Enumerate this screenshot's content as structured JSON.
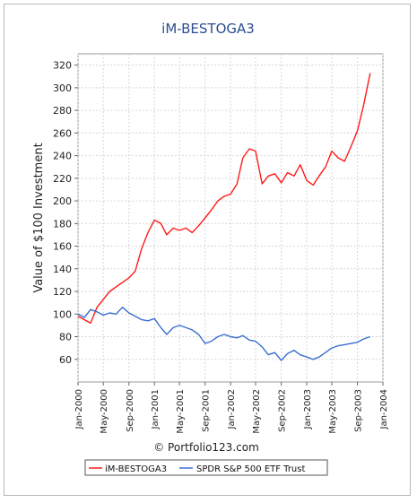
{
  "chart_data": {
    "type": "line",
    "title": "iM-BESTOGA3",
    "xlabel": "",
    "ylabel": "Value of $100 Investment",
    "credit": "© Portfolio123.com",
    "ylim": [
      40,
      330
    ],
    "xlim": [
      "2000-01-01",
      "2004-01-01"
    ],
    "y_ticks": [
      60,
      80,
      100,
      120,
      140,
      160,
      180,
      200,
      220,
      240,
      260,
      280,
      300,
      320
    ],
    "x_ticks": [
      "Jan-2000",
      "May-2000",
      "Sep-2000",
      "Jan-2001",
      "May-2001",
      "Sep-2001",
      "Jan-2002",
      "May-2002",
      "Sep-2002",
      "Jan-2003",
      "May-2003",
      "Sep-2003",
      "Jan-2004"
    ],
    "grid": true,
    "legend_position": "bottom",
    "series": [
      {
        "name": "iM-BESTOGA3",
        "color": "#ff1a1a",
        "x": [
          "2000-01-01",
          "2000-02-01",
          "2000-03-01",
          "2000-04-01",
          "2000-05-01",
          "2000-06-01",
          "2000-07-01",
          "2000-08-01",
          "2000-09-01",
          "2000-10-01",
          "2000-11-01",
          "2000-12-01",
          "2001-01-01",
          "2001-02-01",
          "2001-03-01",
          "2001-04-01",
          "2001-05-01",
          "2001-06-01",
          "2001-07-01",
          "2001-08-01",
          "2001-09-01",
          "2001-10-01",
          "2001-11-01",
          "2001-12-01",
          "2002-01-01",
          "2002-02-01",
          "2002-03-01",
          "2002-04-01",
          "2002-05-01",
          "2002-06-01",
          "2002-07-01",
          "2002-08-01",
          "2002-09-01",
          "2002-10-01",
          "2002-11-01",
          "2002-12-01",
          "2003-01-01",
          "2003-02-01",
          "2003-03-01",
          "2003-04-01",
          "2003-05-01",
          "2003-06-01",
          "2003-07-01",
          "2003-08-01",
          "2003-09-01",
          "2003-10-01",
          "2003-11-01"
        ],
        "y": [
          98,
          95,
          92,
          106,
          113,
          120,
          124,
          128,
          132,
          138,
          158,
          172,
          183,
          180,
          170,
          176,
          174,
          176,
          172,
          178,
          185,
          192,
          200,
          204,
          206,
          215,
          238,
          246,
          244,
          215,
          222,
          224,
          216,
          225,
          222,
          232,
          218,
          214,
          222,
          230,
          244,
          238,
          235,
          248,
          262,
          285,
          313
        ]
      },
      {
        "name": "SPDR S&P 500 ETF Trust",
        "color": "#3a6fd0",
        "x": [
          "2000-01-01",
          "2000-02-01",
          "2000-03-01",
          "2000-04-01",
          "2000-05-01",
          "2000-06-01",
          "2000-07-01",
          "2000-08-01",
          "2000-09-01",
          "2000-10-01",
          "2000-11-01",
          "2000-12-01",
          "2001-01-01",
          "2001-02-01",
          "2001-03-01",
          "2001-04-01",
          "2001-05-01",
          "2001-06-01",
          "2001-07-01",
          "2001-08-01",
          "2001-09-01",
          "2001-10-01",
          "2001-11-01",
          "2001-12-01",
          "2002-01-01",
          "2002-02-01",
          "2002-03-01",
          "2002-04-01",
          "2002-05-01",
          "2002-06-01",
          "2002-07-01",
          "2002-08-01",
          "2002-09-01",
          "2002-10-01",
          "2002-11-01",
          "2002-12-01",
          "2003-01-01",
          "2003-02-01",
          "2003-03-01",
          "2003-04-01",
          "2003-05-01",
          "2003-06-01",
          "2003-07-01",
          "2003-08-01",
          "2003-09-01",
          "2003-10-01",
          "2003-11-01"
        ],
        "y": [
          100,
          97,
          104,
          102,
          99,
          101,
          100,
          106,
          101,
          98,
          95,
          94,
          96,
          88,
          82,
          88,
          90,
          88,
          86,
          82,
          74,
          76,
          80,
          82,
          80,
          79,
          81,
          77,
          76,
          71,
          64,
          66,
          59,
          65,
          68,
          64,
          62,
          60,
          62,
          66,
          70,
          72,
          73,
          74,
          75,
          78,
          80
        ]
      }
    ]
  }
}
